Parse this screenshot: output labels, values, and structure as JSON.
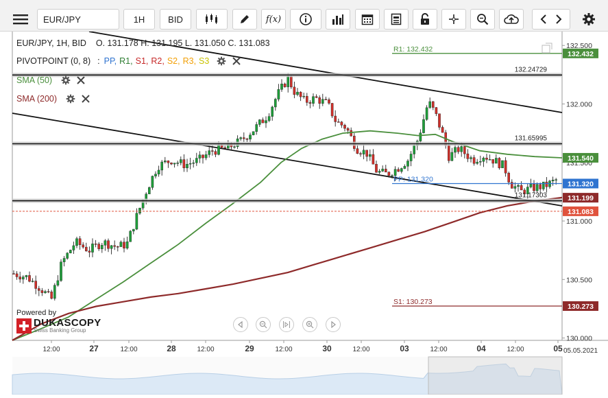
{
  "toolbar": {
    "menu_icon": "hamburger-icon",
    "symbol": "EUR/JPY",
    "timeframe": "1H",
    "price_side": "BID",
    "fx_label": "f(x)"
  },
  "ohlc": {
    "label": "EUR/JPY, 1H, BID",
    "values": "O. 131.178 H. 131.195 L. 131.050 C. 131.083"
  },
  "indicators": {
    "pivot_title": "PIVOTPOINT (0, 8)",
    "pivot_separator": ":",
    "pivot_parts": [
      {
        "label": "PP,",
        "color": "#2f74d0"
      },
      {
        "label": "R1,",
        "color": "#2e7d32"
      },
      {
        "label": "S1,",
        "color": "#c62828"
      },
      {
        "label": "R2,",
        "color": "#c62828"
      },
      {
        "label": "S2,",
        "color": "#f29f05"
      },
      {
        "label": "R3,",
        "color": "#f29f05"
      },
      {
        "label": "S3",
        "color": "#c9c200"
      }
    ],
    "sma50": {
      "label": "SMA (50)",
      "color": "#4a8f3c"
    },
    "sma200": {
      "label": "SMA (200)",
      "color": "#8e2a2a"
    }
  },
  "levels": {
    "r1": {
      "label": "R1: 132.432",
      "tag": "132.432",
      "value": 132.432,
      "color": "#4a8f3c"
    },
    "pp": {
      "label": "PP: 131.320",
      "tag": "131.320",
      "value": 131.32,
      "color": "#2f74d0"
    },
    "s1": {
      "label": "S1: 130.273",
      "tag": "130.273",
      "value": 130.273,
      "color": "#8e2a2a"
    },
    "hline1": {
      "label": "132.24729",
      "value": 132.24729
    },
    "hline2": {
      "label": "131.65995",
      "value": 131.65995
    },
    "hline3": {
      "label": "131.17303",
      "value": 131.17303
    },
    "sma50_tag": {
      "tag": "131.540",
      "value": 131.54,
      "color": "#4a8f3c"
    },
    "sma200_tag": {
      "tag": "131.199",
      "value": 131.199,
      "color": "#8e2a2a"
    },
    "last_price": {
      "tag": "131.083",
      "value": 131.083,
      "color": "#e0533d"
    }
  },
  "y_axis": {
    "ticks": [
      "132.500",
      "132.000",
      "131.500",
      "131.000",
      "130.500",
      "130.000"
    ],
    "min": 129.98,
    "max": 132.56
  },
  "x_axis": {
    "labels": [
      "12:00",
      "27",
      "12:00",
      "28",
      "12:00",
      "29",
      "12:00",
      "30",
      "12:00",
      "03",
      "12:00",
      "04",
      "12:00",
      "05"
    ],
    "date_label": "05.05.2021"
  },
  "branding": {
    "powered_by": "Powered by",
    "name": "DUKASCOPY",
    "tagline": "Swiss Banking Group"
  },
  "nav_icons": [
    "prev-icon",
    "zoom-out-icon",
    "fit-icon",
    "zoom-in-icon",
    "next-icon"
  ]
}
